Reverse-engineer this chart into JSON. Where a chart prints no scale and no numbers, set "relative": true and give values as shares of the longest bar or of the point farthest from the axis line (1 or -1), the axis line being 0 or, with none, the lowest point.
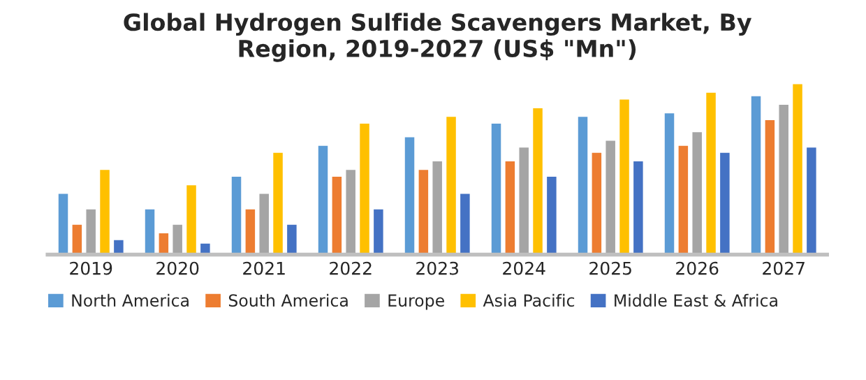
{
  "chart_data": {
    "type": "bar",
    "title": "Global Hydrogen Sulfide Scavengers Market, By\nRegion, 2019-2027 (US$ \"Mn\")",
    "categories": [
      "2019",
      "2020",
      "2021",
      "2022",
      "2023",
      "2024",
      "2025",
      "2026",
      "2027"
    ],
    "relative": true,
    "legend": "bottom",
    "grid": false,
    "series": [
      {
        "name": "North America",
        "color": "#5b9bd5",
        "values": [
          0.36,
          0.27,
          0.46,
          0.64,
          0.69,
          0.77,
          0.81,
          0.83,
          0.93
        ]
      },
      {
        "name": "South America",
        "color": "#ed7d31",
        "values": [
          0.18,
          0.13,
          0.27,
          0.46,
          0.5,
          0.55,
          0.6,
          0.64,
          0.79
        ]
      },
      {
        "name": "Europe",
        "color": "#a5a5a5",
        "values": [
          0.27,
          0.18,
          0.36,
          0.5,
          0.55,
          0.63,
          0.67,
          0.72,
          0.88
        ]
      },
      {
        "name": "Asia Pacific",
        "color": "#ffc000",
        "values": [
          0.5,
          0.41,
          0.6,
          0.77,
          0.81,
          0.86,
          0.91,
          0.95,
          1.0
        ]
      },
      {
        "name": "Middle East & Africa",
        "color": "#4472c4",
        "values": [
          0.09,
          0.07,
          0.18,
          0.27,
          0.36,
          0.46,
          0.55,
          0.6,
          0.63
        ]
      }
    ]
  }
}
